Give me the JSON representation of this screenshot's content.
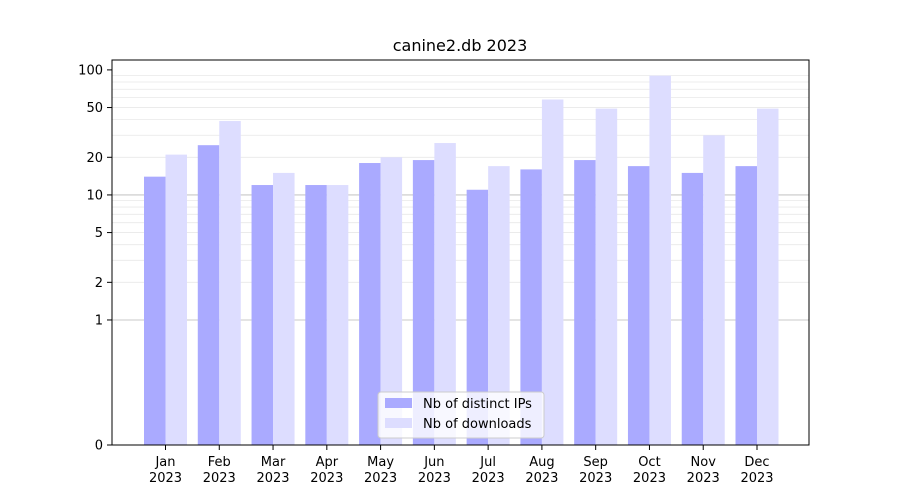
{
  "chart_data": {
    "type": "bar",
    "title": "canine2.db 2023",
    "xlabel": "",
    "ylabel": "",
    "scale": "symlog",
    "ylim": [
      0,
      120
    ],
    "yticks": [
      0,
      1,
      2,
      5,
      10,
      20,
      50,
      100
    ],
    "ytick_labels": [
      "0",
      "1",
      "2",
      "5",
      "10",
      "20",
      "50",
      "100"
    ],
    "categories": [
      [
        "Jan",
        "2023"
      ],
      [
        "Feb",
        "2023"
      ],
      [
        "Mar",
        "2023"
      ],
      [
        "Apr",
        "2023"
      ],
      [
        "May",
        "2023"
      ],
      [
        "Jun",
        "2023"
      ],
      [
        "Jul",
        "2023"
      ],
      [
        "Aug",
        "2023"
      ],
      [
        "Sep",
        "2023"
      ],
      [
        "Oct",
        "2023"
      ],
      [
        "Nov",
        "2023"
      ],
      [
        "Dec",
        "2023"
      ]
    ],
    "series": [
      {
        "name": "Nb of distinct IPs",
        "color": "#aaaaff",
        "values": [
          14,
          25,
          12,
          12,
          18,
          19,
          11,
          16,
          19,
          17,
          15,
          17
        ]
      },
      {
        "name": "Nb of downloads",
        "color": "#ddddff",
        "values": [
          21,
          39,
          15,
          12,
          20,
          26,
          17,
          58,
          49,
          90,
          30,
          49
        ]
      }
    ],
    "grid": true,
    "legend_position": "lower-center"
  }
}
